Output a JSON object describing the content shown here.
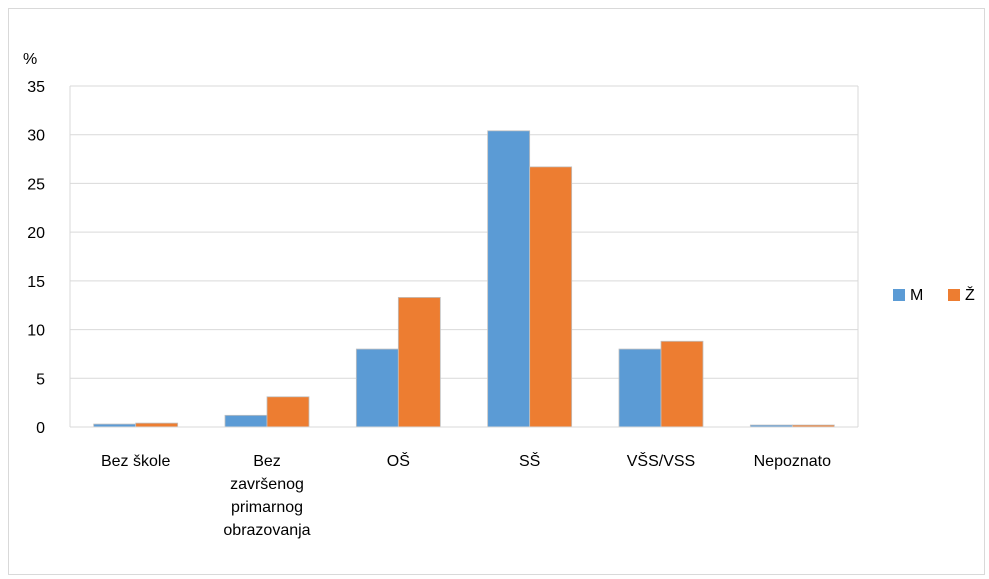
{
  "chart_data": {
    "type": "bar",
    "ylabel": "%",
    "ylim": [
      0,
      35
    ],
    "yticks": [
      "0",
      "5",
      "10",
      "15",
      "20",
      "25",
      "30",
      "35"
    ],
    "categories": [
      [
        "Bez škole"
      ],
      [
        "Bez",
        "završenog",
        "primarnog",
        "obrazovanja"
      ],
      [
        "OŠ"
      ],
      [
        "SŠ"
      ],
      [
        "VŠS/VSS"
      ],
      [
        "Nepoznato"
      ]
    ],
    "series": [
      {
        "name": "M",
        "color": "#5b9bd5",
        "values": [
          0.3,
          1.2,
          8.0,
          30.4,
          8.0,
          0.2
        ]
      },
      {
        "name": "Ž",
        "color": "#ed7d31",
        "values": [
          0.4,
          3.1,
          13.3,
          26.7,
          8.8,
          0.2
        ]
      }
    ],
    "grid": true,
    "legend_position": "right"
  }
}
